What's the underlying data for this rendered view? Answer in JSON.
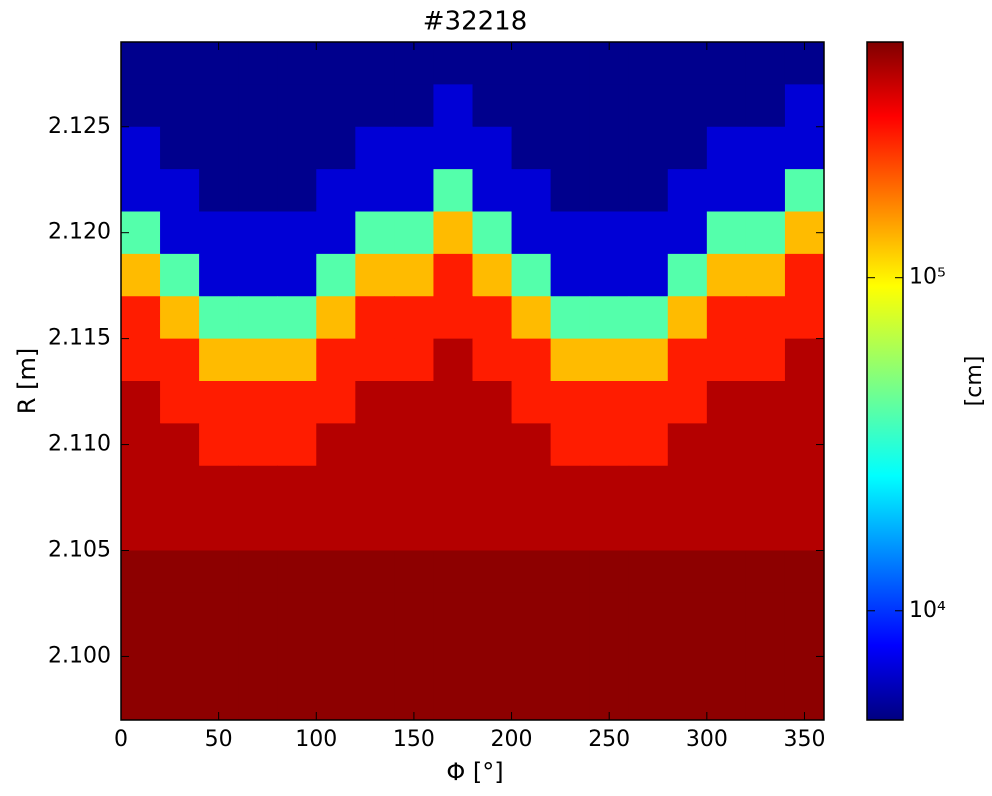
{
  "chart_data": {
    "type": "heatmap",
    "title": "#32218",
    "x_label": "Φ [°]",
    "y_label": "R [m]",
    "colorbar_label": "[cm]",
    "colormap": "jet",
    "color_log": true,
    "x": [
      10,
      30,
      50,
      70,
      90,
      110,
      130,
      150,
      170,
      190,
      210,
      230,
      250,
      270,
      290,
      310,
      330,
      350
    ],
    "y": [
      2.128,
      2.126,
      2.124,
      2.122,
      2.12,
      2.118,
      2.116,
      2.114,
      2.112,
      2.11,
      2.108,
      2.106,
      2.104,
      2.102,
      2.1,
      2.098
    ],
    "z": [
      [
        5000,
        5000,
        5000,
        5000,
        5000,
        5000,
        5000,
        5000,
        5000,
        5000,
        5000,
        5000,
        5000,
        5000,
        5000,
        5000,
        5000,
        5000
      ],
      [
        5000,
        5000,
        5000,
        5000,
        5000,
        5000,
        5000,
        5000,
        7000,
        5000,
        5000,
        5000,
        5000,
        5000,
        5000,
        5000,
        5000,
        7000
      ],
      [
        7000,
        5000,
        5000,
        5000,
        5000,
        5000,
        7000,
        7000,
        7000,
        7000,
        5000,
        5000,
        5000,
        5000,
        5000,
        7000,
        7000,
        7000
      ],
      [
        7000,
        7000,
        5000,
        5000,
        5000,
        7000,
        7000,
        7000,
        40000,
        7000,
        7000,
        5000,
        5000,
        5000,
        7000,
        7000,
        7000,
        40000
      ],
      [
        40000,
        7000,
        7000,
        7000,
        7000,
        7000,
        40000,
        40000,
        120000,
        40000,
        7000,
        7000,
        7000,
        7000,
        7000,
        40000,
        40000,
        120000
      ],
      [
        120000,
        40000,
        7000,
        7000,
        7000,
        40000,
        120000,
        120000,
        250000,
        120000,
        40000,
        7000,
        7000,
        7000,
        40000,
        120000,
        120000,
        250000
      ],
      [
        250000,
        120000,
        40000,
        40000,
        40000,
        120000,
        250000,
        250000,
        250000,
        250000,
        120000,
        40000,
        40000,
        40000,
        120000,
        250000,
        250000,
        250000
      ],
      [
        250000,
        250000,
        120000,
        120000,
        120000,
        250000,
        250000,
        250000,
        400000,
        250000,
        250000,
        120000,
        120000,
        120000,
        250000,
        250000,
        250000,
        400000
      ],
      [
        400000,
        250000,
        250000,
        250000,
        250000,
        250000,
        400000,
        400000,
        400000,
        400000,
        250000,
        250000,
        250000,
        250000,
        250000,
        400000,
        400000,
        400000
      ],
      [
        400000,
        400000,
        250000,
        250000,
        250000,
        400000,
        400000,
        400000,
        400000,
        400000,
        400000,
        250000,
        250000,
        250000,
        400000,
        400000,
        400000,
        400000
      ],
      [
        400000,
        400000,
        400000,
        400000,
        400000,
        400000,
        400000,
        400000,
        400000,
        400000,
        400000,
        400000,
        400000,
        400000,
        400000,
        400000,
        400000,
        400000
      ],
      [
        400000,
        400000,
        400000,
        400000,
        400000,
        400000,
        400000,
        400000,
        400000,
        400000,
        400000,
        400000,
        400000,
        400000,
        400000,
        400000,
        400000,
        400000
      ],
      [
        480000,
        480000,
        480000,
        480000,
        480000,
        480000,
        480000,
        480000,
        480000,
        480000,
        480000,
        480000,
        480000,
        480000,
        480000,
        480000,
        480000,
        480000
      ],
      [
        480000,
        480000,
        480000,
        480000,
        480000,
        480000,
        480000,
        480000,
        480000,
        480000,
        480000,
        480000,
        480000,
        480000,
        480000,
        480000,
        480000,
        480000
      ],
      [
        480000,
        480000,
        480000,
        480000,
        480000,
        480000,
        480000,
        480000,
        480000,
        480000,
        480000,
        480000,
        480000,
        480000,
        480000,
        480000,
        480000,
        480000
      ],
      [
        480000,
        480000,
        480000,
        480000,
        480000,
        480000,
        480000,
        480000,
        480000,
        480000,
        480000,
        480000,
        480000,
        480000,
        480000,
        480000,
        480000,
        480000
      ]
    ],
    "xlim": [
      0,
      360
    ],
    "xticks": [
      0,
      50,
      100,
      150,
      200,
      250,
      300,
      350
    ],
    "ylim": [
      2.097,
      2.129
    ],
    "yticks": [
      {
        "value": 2.1,
        "label": "2.100"
      },
      {
        "value": 2.105,
        "label": "2.105"
      },
      {
        "value": 2.11,
        "label": "2.110"
      },
      {
        "value": 2.115,
        "label": "2.115"
      },
      {
        "value": 2.12,
        "label": "2.120"
      },
      {
        "value": 2.125,
        "label": "2.125"
      }
    ],
    "clim": [
      4700,
      510000
    ],
    "cticks": [
      {
        "value": 10000,
        "label": "10⁴"
      },
      {
        "value": 100000,
        "label": "10⁵"
      }
    ]
  }
}
